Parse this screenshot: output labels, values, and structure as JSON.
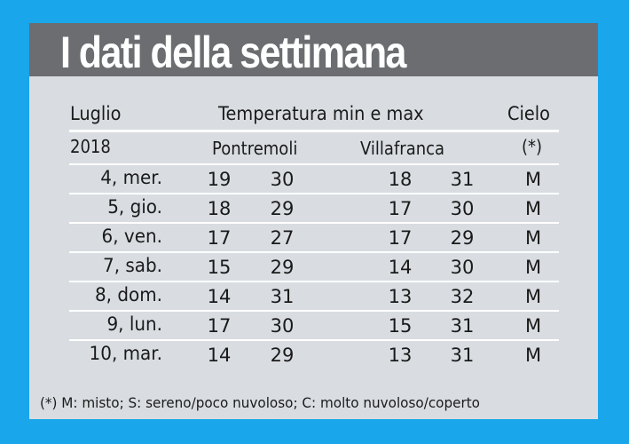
{
  "title": "I dati della settimana",
  "header": {
    "month": "Luglio",
    "year": "2018",
    "temperature": "Temperatura min e max",
    "sky": "Cielo",
    "sky_note": "(*)",
    "loc1": "Pontremoli",
    "loc2": "Villafranca"
  },
  "rows": [
    {
      "day": "4, mer.",
      "p_min": "19",
      "p_max": "30",
      "v_min": "18",
      "v_max": "31",
      "sky": "M"
    },
    {
      "day": "5, gio.",
      "p_min": "18",
      "p_max": "29",
      "v_min": "17",
      "v_max": "30",
      "sky": "M"
    },
    {
      "day": "6, ven.",
      "p_min": "17",
      "p_max": "27",
      "v_min": "17",
      "v_max": "29",
      "sky": "M"
    },
    {
      "day": "7, sab.",
      "p_min": "15",
      "p_max": "29",
      "v_min": "14",
      "v_max": "30",
      "sky": "M"
    },
    {
      "day": "8, dom.",
      "p_min": "14",
      "p_max": "31",
      "v_min": "13",
      "v_max": "32",
      "sky": "M"
    },
    {
      "day": "9, lun.",
      "p_min": "17",
      "p_max": "30",
      "v_min": "15",
      "v_max": "31",
      "sky": "M"
    },
    {
      "day": "10, mar.",
      "p_min": "14",
      "p_max": "29",
      "v_min": "13",
      "v_max": "31",
      "sky": "M"
    }
  ],
  "footnote": "(*) M: misto; S: sereno/poco nuvoloso; C: molto nuvoloso/coperto",
  "colors": {
    "background": "#1aa6ea",
    "card": "#d9dde1",
    "title_bar": "#6b6d70"
  }
}
